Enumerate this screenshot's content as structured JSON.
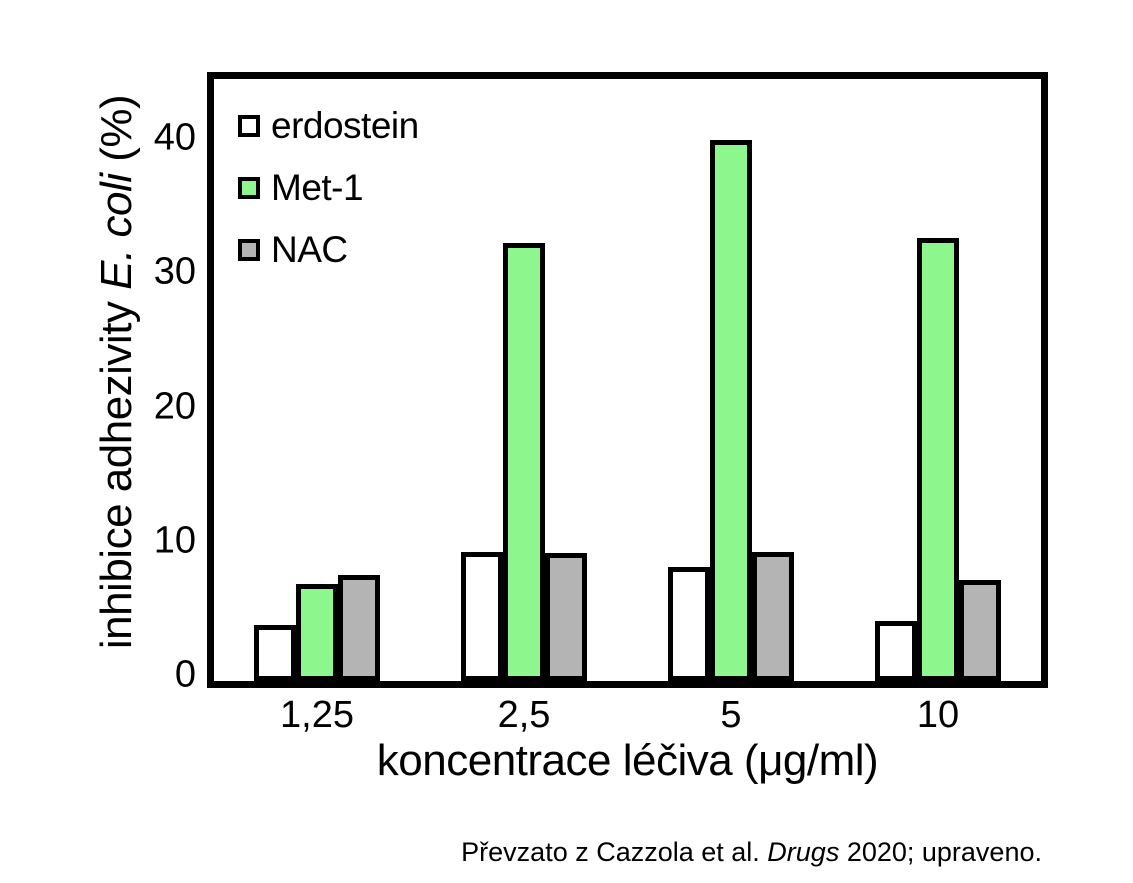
{
  "chart_data": {
    "type": "bar",
    "categories": [
      "1,25",
      "2,5",
      "5",
      "10"
    ],
    "series": [
      {
        "name": "erdostein",
        "fill": "#FFFFFF",
        "values": [
          4.1,
          9.5,
          8.4,
          4.4
        ]
      },
      {
        "name": "Met-1",
        "fill": "#8DF78D",
        "values": [
          7.1,
          32.2,
          39.8,
          32.6
        ]
      },
      {
        "name": "NAC",
        "fill": "#B4B4B4",
        "values": [
          7.8,
          9.4,
          9.5,
          7.4
        ]
      }
    ],
    "bar_outline": "#000000",
    "xlabel": "koncentrace léčiva (μg/ml)",
    "ylabel": {
      "pre": "inhibice adhezivity ",
      "italic": "E. coli",
      "post": " (%)"
    },
    "yticks": [
      0,
      10,
      20,
      30,
      40
    ],
    "ylim": [
      0,
      44
    ],
    "grid": false,
    "legend_position": "upper-left-inside"
  },
  "caption": {
    "pre": "Převzato z Cazzola et al. ",
    "italic": "Drugs",
    "post": " 2020; upraveno."
  }
}
